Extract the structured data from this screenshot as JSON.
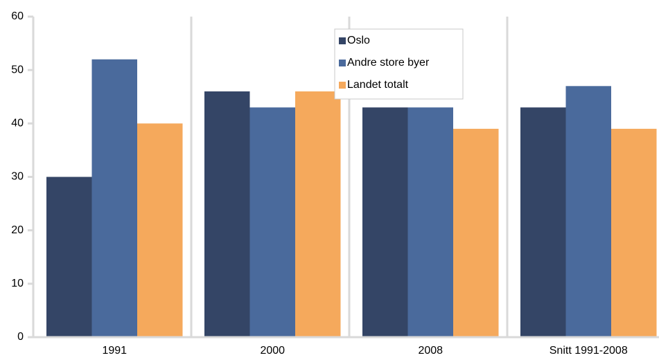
{
  "chart_data": {
    "type": "bar",
    "categories": [
      "1991",
      "2000",
      "2008",
      "Snitt 1991-2008"
    ],
    "series": [
      {
        "name": "Oslo",
        "color": "#344566",
        "values": [
          30,
          46,
          43,
          43
        ]
      },
      {
        "name": "Andre store byer",
        "color": "#4a6a9c",
        "values": [
          52,
          43,
          43,
          47
        ]
      },
      {
        "name": "Landet totalt",
        "color": "#f5a95c",
        "values": [
          40,
          46,
          39,
          39
        ]
      }
    ],
    "ylim": [
      0,
      60
    ],
    "yticks": [
      0,
      10,
      20,
      30,
      40,
      50,
      60
    ],
    "grid": false,
    "legend": "top"
  }
}
